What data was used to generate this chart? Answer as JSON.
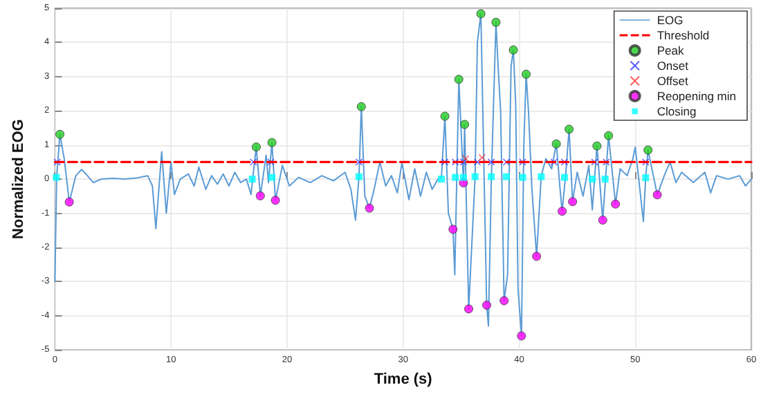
{
  "chart_data": {
    "type": "line",
    "xlabel": "Time (s)",
    "ylabel": "Normalized EOG",
    "xlim": [
      0,
      60
    ],
    "xticks": [
      0,
      10,
      20,
      30,
      40,
      50,
      60
    ],
    "ylim": [
      -5,
      5
    ],
    "yticks": [
      -5,
      -4,
      -3,
      -2,
      -1,
      0,
      1,
      2,
      3,
      4,
      5
    ],
    "grid": true,
    "legend": "top right",
    "series": [
      {
        "name": "EOG",
        "color": "#5b9bd5",
        "marker": "none",
        "line_style": "solid",
        "x": [
          0,
          0.15,
          0.43,
          0.8,
          1.24,
          1.8,
          2.3,
          2.8,
          3.3,
          4,
          5,
          6,
          7,
          8,
          8.4,
          8.7,
          9.2,
          9.6,
          10,
          10.3,
          10.8,
          11.5,
          12,
          12.4,
          13,
          13.5,
          14,
          14.5,
          15,
          15.5,
          16,
          16.5,
          16.9,
          17.05,
          17.35,
          17.7,
          18.2,
          18.4,
          18.7,
          19,
          19.6,
          20.2,
          21,
          22,
          23,
          24,
          25,
          25.5,
          25.9,
          26.2,
          26.4,
          26.7,
          27.1,
          27.5,
          28,
          28.5,
          29,
          29.5,
          29.9,
          30.5,
          31,
          31.5,
          32,
          32.5,
          33,
          33.3,
          33.6,
          33.9,
          34.3,
          34.45,
          34.8,
          35.2,
          35.3,
          35.65,
          36.2,
          36.4,
          36.7,
          37.2,
          37.35,
          37.6,
          38,
          38.2,
          38.4,
          38.7,
          39,
          39.3,
          39.5,
          39.7,
          39.9,
          40.2,
          40.4,
          40.6,
          40.8,
          41.1,
          41.5,
          41.9,
          42.3,
          42.8,
          43.2,
          43.5,
          43.7,
          44,
          44.3,
          44.6,
          45,
          45.5,
          46,
          46.3,
          46.7,
          47.2,
          47.5,
          47.7,
          48.3,
          48.7,
          49.3,
          49.8,
          50,
          50.7,
          50.9,
          51.1,
          51.9,
          52.5,
          53,
          53.5,
          54,
          55,
          56,
          56.5,
          57,
          58,
          59,
          59.5,
          60
        ],
        "values": [
          -3,
          0.05,
          1.31,
          0.6,
          -0.67,
          0.1,
          0.28,
          0.1,
          -0.1,
          0,
          0.02,
          0,
          0.03,
          0.1,
          -0.2,
          -1.45,
          0.8,
          -1,
          0.5,
          -0.45,
          0,
          0.15,
          -0.2,
          0.35,
          -0.3,
          0.1,
          -0.15,
          0.15,
          -0.2,
          0.2,
          -0.1,
          0,
          -0.45,
          0.05,
          0.94,
          -0.49,
          0.7,
          -0.1,
          1.07,
          -0.62,
          0.4,
          -0.2,
          0.05,
          -0.1,
          0.1,
          -0.05,
          0.2,
          -0.3,
          -1.2,
          0.07,
          2.12,
          -0.5,
          -0.85,
          -0.3,
          0.5,
          -0.2,
          0.1,
          -0.4,
          0.48,
          -0.6,
          0.3,
          -0.5,
          0.2,
          -0.3,
          0,
          0.05,
          1.84,
          -1,
          -1.47,
          -2.8,
          2.92,
          -0.11,
          1.6,
          -3.8,
          0.05,
          4,
          4.84,
          -3.69,
          -4.3,
          0,
          4.59,
          3.2,
          2,
          -3.56,
          -2.8,
          3.3,
          3.78,
          2.2,
          -3.2,
          -4.59,
          1,
          3.07,
          2,
          -0.3,
          -2.26,
          0.1,
          0.6,
          0.3,
          1.03,
          -0.2,
          -0.94,
          0.1,
          1.46,
          -0.66,
          0.2,
          -0.5,
          0.4,
          -0.9,
          0.97,
          -1.2,
          0.3,
          1.27,
          -0.73,
          0.3,
          0.1,
          0.6,
          0.94,
          -1.24,
          0.05,
          0.85,
          -0.46,
          0.1,
          0.5,
          -0.1,
          0.2,
          -0.1,
          0.2,
          -0.4,
          0.1,
          0,
          0.1,
          -0.2,
          0
        ]
      },
      {
        "name": "Threshold",
        "color": "#ff0000",
        "marker": "none",
        "line_style": "dashed",
        "x": [
          0,
          60
        ],
        "values": [
          0.5,
          0.5
        ]
      },
      {
        "name": "Peak",
        "type": "scatter",
        "color": "#22cc22",
        "marker": "circle",
        "x": [
          0.43,
          17.35,
          18.7,
          26.4,
          33.6,
          34.8,
          35.3,
          36.7,
          38,
          39.5,
          40.6,
          43.2,
          44.3,
          46.7,
          47.7,
          51.1
        ],
        "values": [
          1.31,
          0.94,
          1.07,
          2.12,
          1.84,
          2.92,
          1.6,
          4.84,
          4.59,
          3.78,
          3.07,
          1.03,
          1.46,
          0.97,
          1.27,
          0.85
        ]
      },
      {
        "name": "Onset",
        "type": "scatter",
        "color": "#3333ff",
        "marker": "cross",
        "x": [
          0.2,
          17.1,
          18.6,
          26.2,
          33.6,
          34.5,
          35.2,
          36.4,
          37.6,
          38.9,
          40.3,
          43,
          43.9,
          46.5,
          47.5,
          50.9
        ],
        "values": [
          0.5,
          0.5,
          0.5,
          0.5,
          0.5,
          0.5,
          0.5,
          0.5,
          0.5,
          0.5,
          0.5,
          0.5,
          0.5,
          0.5,
          0.5,
          0.5
        ]
      },
      {
        "name": "Offset",
        "type": "scatter",
        "color": "#ff3333",
        "marker": "cross",
        "x": [
          35.4,
          36.8
        ],
        "values": [
          0.6,
          0.63
        ]
      },
      {
        "name": "Reopening min",
        "type": "scatter",
        "color": "#ff00ff",
        "marker": "circle",
        "x": [
          1.24,
          17.7,
          19,
          27.1,
          34.3,
          35.2,
          35.65,
          37.2,
          38.7,
          40.2,
          41.5,
          43.7,
          44.6,
          47.2,
          48.3,
          51.9
        ],
        "values": [
          -0.67,
          -0.49,
          -0.62,
          -0.85,
          -1.47,
          -0.11,
          -3.8,
          -3.69,
          -3.56,
          -4.59,
          -2.26,
          -0.94,
          -0.66,
          -1.2,
          -0.73,
          -0.46
        ]
      },
      {
        "name": "Closing",
        "type": "scatter",
        "color": "#00ffff",
        "marker": "square",
        "x": [
          0.12,
          17,
          18.7,
          26.2,
          33.3,
          34.5,
          35.2,
          36.2,
          37.6,
          38.9,
          40.3,
          41.9,
          43.9,
          46.3,
          47.4,
          50.9
        ],
        "values": [
          0.05,
          0,
          0.05,
          0.07,
          0,
          0.05,
          0.05,
          0.07,
          0.07,
          0.07,
          0.05,
          0.07,
          0.05,
          0,
          0,
          0.04
        ]
      }
    ]
  }
}
